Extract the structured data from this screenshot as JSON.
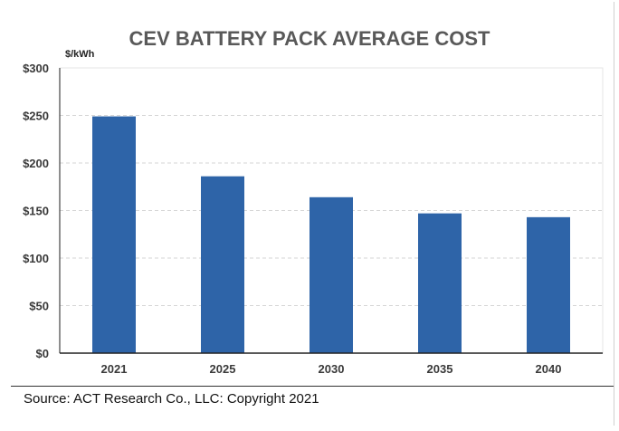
{
  "chart_data": {
    "type": "bar",
    "title": "CEV BATTERY PACK AVERAGE COST",
    "ylabel": "$/kWh",
    "xlabel": "",
    "categories": [
      "2021",
      "2025",
      "2030",
      "2035",
      "2040"
    ],
    "values": [
      249,
      186,
      164,
      147,
      143
    ],
    "ylim": [
      0,
      300
    ],
    "yticks": [
      0,
      50,
      100,
      150,
      200,
      250,
      300
    ],
    "ytick_labels": [
      "$0",
      "$50",
      "$100",
      "$150",
      "$200",
      "$250",
      "$300"
    ],
    "grid": true,
    "bar_color": "#2E64A8"
  },
  "source": "Source: ACT Research Co., LLC: Copyright 2021"
}
